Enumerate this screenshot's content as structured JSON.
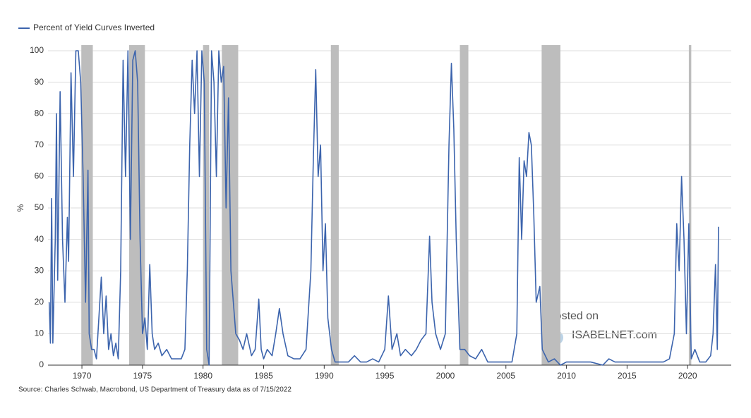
{
  "chart_data": {
    "type": "line",
    "legend_label": "Percent of Yield Curves Inverted",
    "ylabel": "%",
    "source": "Source: Charles Schwab, Macrobond, US Department of Treasury data as of 7/15/2022",
    "watermark": [
      "Posted on",
      "ISABELNET.com"
    ],
    "xlim": [
      1967.2,
      2023.6
    ],
    "xticks": [
      1970,
      1975,
      1980,
      1985,
      1990,
      1995,
      2000,
      2005,
      2010,
      2015,
      2020
    ],
    "ylim": [
      0,
      100
    ],
    "yticks": [
      0,
      10,
      20,
      30,
      40,
      50,
      60,
      70,
      80,
      90,
      100
    ],
    "grid": true,
    "shade_color": "#bdbdbd",
    "shaded_periods": [
      [
        1969.95,
        1970.9
      ],
      [
        1973.9,
        1975.2
      ],
      [
        1980.0,
        1980.5
      ],
      [
        1981.55,
        1982.9
      ],
      [
        1990.55,
        1991.2
      ],
      [
        2001.2,
        2001.9
      ],
      [
        2007.95,
        2009.5
      ],
      [
        2020.1,
        2020.3
      ]
    ],
    "series": [
      {
        "name": "Percent of Yield Curves Inverted",
        "color": "#3c64ad",
        "x": [
          1967.3,
          1967.4,
          1967.5,
          1967.6,
          1967.8,
          1967.9,
          1968.0,
          1968.2,
          1968.4,
          1968.6,
          1968.8,
          1968.9,
          1969.1,
          1969.3,
          1969.5,
          1969.7,
          1969.9,
          1970.1,
          1970.3,
          1970.5,
          1970.6,
          1970.8,
          1971.0,
          1971.2,
          1971.4,
          1971.6,
          1971.8,
          1972.0,
          1972.2,
          1972.4,
          1972.6,
          1972.8,
          1973.0,
          1973.2,
          1973.4,
          1973.6,
          1973.8,
          1974.0,
          1974.2,
          1974.4,
          1974.6,
          1974.8,
          1975.0,
          1975.2,
          1975.4,
          1975.6,
          1975.8,
          1976.0,
          1976.3,
          1976.6,
          1977.0,
          1977.4,
          1977.8,
          1978.2,
          1978.5,
          1978.7,
          1978.9,
          1979.1,
          1979.3,
          1979.5,
          1979.7,
          1979.9,
          1980.1,
          1980.3,
          1980.5,
          1980.7,
          1980.9,
          1981.1,
          1981.3,
          1981.5,
          1981.7,
          1981.9,
          1982.1,
          1982.3,
          1982.5,
          1982.7,
          1983.0,
          1983.3,
          1983.6,
          1984.0,
          1984.3,
          1984.6,
          1984.8,
          1985.0,
          1985.3,
          1985.7,
          1986.0,
          1986.3,
          1986.6,
          1987.0,
          1987.5,
          1988.0,
          1988.5,
          1988.9,
          1989.1,
          1989.3,
          1989.5,
          1989.7,
          1989.9,
          1990.1,
          1990.3,
          1990.6,
          1990.9,
          1991.5,
          1992.0,
          1992.5,
          1993.0,
          1993.5,
          1994.0,
          1994.5,
          1995.0,
          1995.3,
          1995.6,
          1996.0,
          1996.3,
          1996.7,
          1997.2,
          1997.6,
          1998.0,
          1998.4,
          1998.7,
          1998.9,
          1999.2,
          1999.6,
          2000.0,
          2000.3,
          2000.5,
          2000.7,
          2000.9,
          2001.2,
          2001.6,
          2002.0,
          2002.5,
          2003.0,
          2003.5,
          2004.0,
          2004.5,
          2005.0,
          2005.5,
          2005.9,
          2006.1,
          2006.3,
          2006.5,
          2006.7,
          2006.9,
          2007.1,
          2007.3,
          2007.5,
          2007.8,
          2008.0,
          2008.5,
          2009.0,
          2009.5,
          2010.0,
          2011.0,
          2012.0,
          2013.0,
          2013.5,
          2014.0,
          2015.0,
          2016.0,
          2017.0,
          2018.0,
          2018.5,
          2018.9,
          2019.1,
          2019.3,
          2019.5,
          2019.7,
          2019.9,
          2020.1,
          2020.3,
          2020.6,
          2021.0,
          2021.5,
          2021.9,
          2022.1,
          2022.3,
          2022.45,
          2022.55
        ],
        "values": [
          20,
          7,
          53,
          7,
          40,
          80,
          27,
          87,
          40,
          20,
          47,
          33,
          93,
          60,
          100,
          100,
          90,
          60,
          20,
          62,
          10,
          5,
          5,
          2,
          15,
          28,
          10,
          22,
          5,
          10,
          3,
          7,
          2,
          30,
          97,
          60,
          100,
          40,
          97,
          100,
          90,
          40,
          10,
          15,
          5,
          32,
          10,
          5,
          7,
          3,
          5,
          2,
          2,
          2,
          5,
          30,
          70,
          97,
          80,
          100,
          60,
          100,
          90,
          5,
          0,
          100,
          90,
          60,
          100,
          90,
          95,
          50,
          85,
          30,
          20,
          10,
          8,
          5,
          10,
          3,
          5,
          21,
          5,
          2,
          5,
          3,
          10,
          18,
          10,
          3,
          2,
          2,
          5,
          30,
          65,
          94,
          60,
          70,
          30,
          45,
          15,
          5,
          1,
          1,
          1,
          3,
          1,
          1,
          2,
          1,
          5,
          22,
          5,
          10,
          3,
          5,
          3,
          5,
          8,
          10,
          41,
          20,
          10,
          5,
          10,
          70,
          96,
          75,
          40,
          5,
          5,
          3,
          2,
          5,
          1,
          1,
          1,
          1,
          1,
          10,
          66,
          40,
          65,
          60,
          74,
          70,
          48,
          20,
          25,
          5,
          1,
          2,
          0,
          1,
          1,
          1,
          0,
          2,
          1,
          1,
          1,
          1,
          1,
          2,
          10,
          45,
          30,
          60,
          40,
          10,
          45,
          2,
          5,
          1,
          1,
          3,
          10,
          32,
          5,
          44
        ]
      }
    ]
  }
}
